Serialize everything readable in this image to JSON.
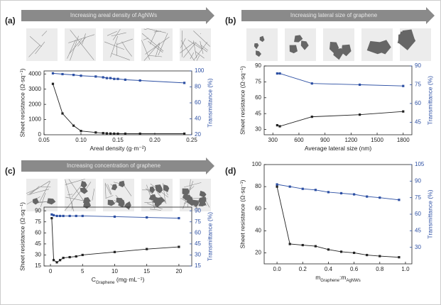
{
  "chart_data": [
    {
      "type": "line",
      "panel": "(a)",
      "banner": "Increasing areal density of AgNWs",
      "xlabel_parts": [
        {
          "text": "Areal density (g·m⁻²)"
        }
      ],
      "ylabel": "Sheet resistance (Ω·sq⁻¹)",
      "y2label": "Transmittance (%)",
      "x": [
        0.062,
        0.075,
        0.09,
        0.1,
        0.12,
        0.13,
        0.135,
        0.14,
        0.145,
        0.15,
        0.16,
        0.18,
        0.24
      ],
      "xlim": [
        0.05,
        0.25
      ],
      "xticks": [
        0.05,
        {
          "value": 0.1,
          "label": "0.10"
        },
        0.15,
        {
          "value": 0.2,
          "label": "0.20"
        },
        0.25
      ],
      "ylim": [
        0,
        4200
      ],
      "yticks": [
        0,
        1000,
        2000,
        3000,
        4000
      ],
      "y2lim": [
        20,
        100
      ],
      "y2ticks": [
        20,
        40,
        60,
        80,
        100
      ],
      "series": [
        {
          "color": "#222222",
          "values": [
            3350,
            1400,
            600,
            250,
            150,
            110,
            90,
            80,
            75,
            70,
            70,
            70,
            70
          ]
        },
        {
          "color": "#2c4fa3",
          "axis": "y2",
          "values": [
            97,
            96,
            95,
            94,
            93,
            92,
            91,
            91,
            90,
            90,
            89,
            88,
            85
          ]
        }
      ]
    },
    {
      "type": "line",
      "panel": "(b)",
      "banner": "Increasing lateral size of graphene",
      "xlabel_parts": [
        {
          "text": "Average lateral size (nm)"
        }
      ],
      "ylabel": "Sheet resistance (Ω·sq⁻¹)",
      "y2label": "Transmittance (%)",
      "x": [
        350,
        380,
        750,
        1300,
        1800
      ],
      "xlim": [
        200,
        1900
      ],
      "xticks": [
        300,
        600,
        900,
        1200,
        1500,
        1800
      ],
      "ylim": [
        25,
        90
      ],
      "yticks": [
        30,
        45,
        60,
        75,
        90
      ],
      "y2lim": [
        35,
        90
      ],
      "y2ticks": [
        45,
        60,
        75,
        90
      ],
      "series": [
        {
          "color": "#222222",
          "values": [
            34,
            33,
            42,
            44,
            47
          ]
        },
        {
          "color": "#2c4fa3",
          "axis": "y2",
          "values": [
            84,
            84,
            76,
            75,
            74
          ]
        }
      ]
    },
    {
      "type": "line",
      "panel": "(c)",
      "banner": "Increasing concentration of graphene",
      "xlabel_parts": [
        {
          "text": "C"
        },
        {
          "text": "Graphene",
          "sub": true
        },
        {
          "text": " (mg·mL⁻¹)"
        }
      ],
      "ylabel": "Sheet resistance (Ω·sq⁻¹)",
      "y2label": "Transmittance (%)",
      "x": [
        0.2,
        0.5,
        1,
        1.5,
        2,
        3,
        4,
        5,
        10,
        15,
        20
      ],
      "xlim": [
        -1,
        22
      ],
      "xticks": [
        0,
        5,
        10,
        15,
        20
      ],
      "ylim": [
        15,
        95
      ],
      "yticks": [
        15,
        30,
        45,
        60,
        75,
        90
      ],
      "y2lim": [
        15,
        95
      ],
      "y2ticks": [
        15,
        30,
        45,
        60,
        75,
        90
      ],
      "series": [
        {
          "color": "#222222",
          "values": [
            80,
            23,
            20,
            23,
            26,
            27,
            28,
            30,
            34,
            38,
            41
          ]
        },
        {
          "color": "#2c4fa3",
          "axis": "y2",
          "values": [
            85,
            84,
            83,
            83,
            83,
            83,
            83,
            83,
            82,
            81,
            80
          ]
        }
      ]
    },
    {
      "type": "line",
      "panel": "(d)",
      "xlabel_parts": [
        {
          "text": "m"
        },
        {
          "text": "Graphene",
          "sub": true
        },
        {
          "text": ":m"
        },
        {
          "text": "AgNWs",
          "sub": true
        }
      ],
      "ylabel": "Sheet resistance (Ω·sq⁻¹)",
      "y2label": "Transmittance (%)",
      "x": [
        0,
        0.1,
        0.2,
        0.3,
        0.4,
        0.5,
        0.6,
        0.7,
        0.8,
        0.95
      ],
      "xlim": [
        -0.1,
        1.05
      ],
      "xticks": [
        {
          "value": 0,
          "label": "0.0"
        },
        0.2,
        0.4,
        0.6,
        0.8,
        {
          "value": 1,
          "label": "1.0"
        }
      ],
      "ylim": [
        10,
        100
      ],
      "yticks": [
        20,
        40,
        60,
        80,
        100
      ],
      "y2lim": [
        15,
        105
      ],
      "y2ticks": [
        30,
        45,
        60,
        75,
        90,
        105
      ],
      "series": [
        {
          "color": "#222222",
          "values": [
            80,
            28,
            27,
            26,
            23,
            21,
            20,
            18,
            17,
            16
          ]
        },
        {
          "color": "#2c4fa3",
          "axis": "y2",
          "values": [
            87,
            85,
            83,
            82,
            80,
            79,
            78,
            76,
            75,
            73
          ]
        }
      ]
    }
  ]
}
